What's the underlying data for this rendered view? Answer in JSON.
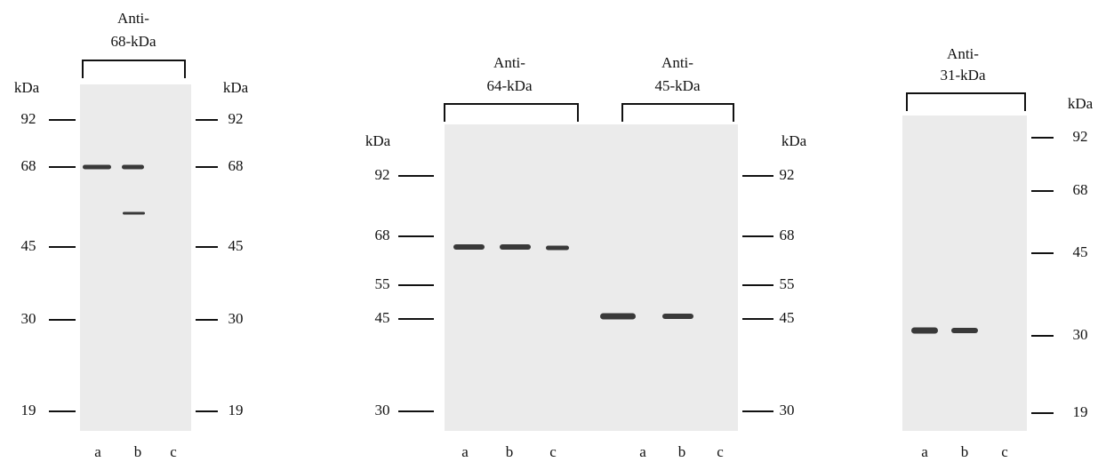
{
  "panels": [
    {
      "groups": [
        {
          "title": [
            "Anti-",
            "68-kDa"
          ],
          "lanes": [
            "a",
            "b",
            "c"
          ]
        }
      ],
      "left": {
        "unit": "kDa",
        "markers": [
          "92",
          "68",
          "45",
          "30",
          "19"
        ]
      },
      "right": {
        "unit": "kDa",
        "markers": [
          "92",
          "68",
          "45",
          "30",
          "19"
        ]
      }
    },
    {
      "groups": [
        {
          "title": [
            "Anti-",
            "64-kDa"
          ],
          "lanes": [
            "a",
            "b",
            "c"
          ]
        },
        {
          "title": [
            "Anti-",
            "45-kDa"
          ],
          "lanes": [
            "a",
            "b",
            "c"
          ]
        }
      ],
      "left": {
        "unit": "kDa",
        "markers": [
          "92",
          "68",
          "55",
          "45",
          "30"
        ]
      },
      "right": {
        "unit": "kDa",
        "markers": [
          "92",
          "68",
          "55",
          "45",
          "30"
        ]
      }
    },
    {
      "groups": [
        {
          "title": [
            "Anti-",
            "31-kDa"
          ],
          "lanes": [
            "a",
            "b",
            "c"
          ]
        }
      ],
      "right": {
        "unit": "kDa",
        "markers": [
          "92",
          "68",
          "45",
          "30",
          "19"
        ]
      }
    }
  ]
}
